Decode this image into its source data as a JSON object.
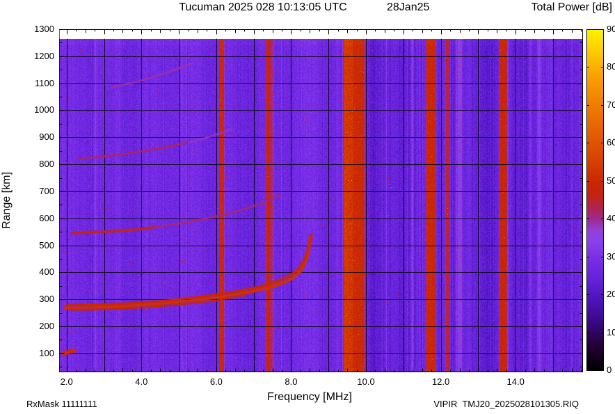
{
  "footer": {
    "rx_mask": "RxMask 11111111",
    "file_name": "VIPIR  TMJ20_2025028101305.RIQ"
  },
  "chart_data": {
    "type": "heatmap",
    "title": "Tucuman 2025 028 10:13:05 UTC",
    "date_label": "28Jan25",
    "xlabel": "Frequency [MHz]",
    "ylabel": "Range [km]",
    "colorbar_label": "Total Power [dB]",
    "xlim": [
      1.8,
      15.8
    ],
    "ylim": [
      30,
      1300
    ],
    "zlim": [
      0,
      90
    ],
    "x_major_ticks": [
      2,
      4,
      6,
      8,
      10,
      12,
      14
    ],
    "x_tick_labels": [
      "2.0",
      "4.0",
      "6.0",
      "8.0",
      "10.0",
      "12.0",
      "14.0"
    ],
    "y_major_ticks": [
      100,
      200,
      300,
      400,
      500,
      600,
      700,
      800,
      900,
      1000,
      1100,
      1200,
      1300
    ],
    "y_tick_labels": [
      "100",
      "200",
      "300",
      "400",
      "500",
      "600",
      "700",
      "800",
      "900",
      "1000",
      "1100",
      "1200",
      "1300"
    ],
    "z_ticks": [
      0,
      10,
      20,
      30,
      40,
      50,
      60,
      70,
      80,
      90
    ],
    "grid": true,
    "legend_position": "colorbar-right",
    "background_db": 27,
    "data_top_km": 1265,
    "colormap_stops": [
      [
        0,
        "#000000"
      ],
      [
        7,
        "#26003a"
      ],
      [
        13,
        "#3a0a86"
      ],
      [
        19,
        "#4f14c0"
      ],
      [
        25,
        "#6a24de"
      ],
      [
        30,
        "#7b2fe8"
      ],
      [
        34,
        "#8a40ee"
      ],
      [
        37,
        "#9340d8"
      ],
      [
        40,
        "#a02a90"
      ],
      [
        43,
        "#b02450"
      ],
      [
        46,
        "#c22414"
      ],
      [
        50,
        "#cc2800"
      ],
      [
        56,
        "#d84400"
      ],
      [
        63,
        "#e66000"
      ],
      [
        70,
        "#f07d00"
      ],
      [
        78,
        "#faa300"
      ],
      [
        85,
        "#ffd000"
      ],
      [
        90,
        "#fff200"
      ]
    ],
    "rfi_bands": [
      {
        "f_start": 2.74,
        "f_end": 2.84,
        "db_boost": 4
      },
      {
        "f_start": 3.38,
        "f_end": 3.44,
        "db_boost": 3
      },
      {
        "f_start": 6.09,
        "f_end": 6.2,
        "db_boost": 22
      },
      {
        "f_start": 7.34,
        "f_end": 7.42,
        "db_boost": 20
      },
      {
        "f_start": 7.44,
        "f_end": 7.5,
        "db_boost": 15
      },
      {
        "f_start": 9.4,
        "f_end": 9.66,
        "db_boost": 26
      },
      {
        "f_start": 9.68,
        "f_end": 9.95,
        "db_boost": 23
      },
      {
        "f_start": 11.22,
        "f_end": 11.26,
        "db_boost": 8
      },
      {
        "f_start": 11.62,
        "f_end": 11.86,
        "db_boost": 22
      },
      {
        "f_start": 12.12,
        "f_end": 12.24,
        "db_boost": 18
      },
      {
        "f_start": 12.43,
        "f_end": 12.55,
        "db_boost": 10
      },
      {
        "f_start": 13.57,
        "f_end": 13.76,
        "db_boost": 22
      },
      {
        "f_start": 14.35,
        "f_end": 14.42,
        "db_boost": 6
      },
      {
        "f_start": 14.6,
        "f_end": 14.68,
        "db_boost": 7
      }
    ],
    "traces": [
      {
        "name": "F-layer-echo-main",
        "db": 52,
        "width": 3.5,
        "points": [
          [
            1.95,
            268
          ],
          [
            2.3,
            268
          ],
          [
            2.8,
            270
          ],
          [
            3.3,
            273
          ],
          [
            3.8,
            277
          ],
          [
            4.3,
            282
          ],
          [
            4.8,
            288
          ],
          [
            5.3,
            295
          ],
          [
            5.8,
            303
          ],
          [
            6.3,
            313
          ],
          [
            6.8,
            325
          ],
          [
            7.2,
            337
          ],
          [
            7.6,
            352
          ],
          [
            7.9,
            368
          ],
          [
            8.1,
            385
          ],
          [
            8.25,
            405
          ],
          [
            8.35,
            430
          ],
          [
            8.43,
            460
          ],
          [
            8.48,
            495
          ],
          [
            8.51,
            530
          ]
        ]
      },
      {
        "name": "F-layer-echo-second",
        "db": 49,
        "width": 2.5,
        "points": [
          [
            2.0,
            278
          ],
          [
            2.5,
            279
          ],
          [
            3.0,
            281
          ],
          [
            3.5,
            284
          ],
          [
            4.0,
            288
          ],
          [
            4.5,
            293
          ],
          [
            5.0,
            300
          ],
          [
            5.5,
            308
          ],
          [
            6.0,
            317
          ],
          [
            6.5,
            328
          ],
          [
            7.0,
            341
          ],
          [
            7.4,
            356
          ],
          [
            7.7,
            371
          ],
          [
            8.0,
            391
          ],
          [
            8.2,
            413
          ],
          [
            8.33,
            441
          ],
          [
            8.42,
            471
          ],
          [
            8.5,
            506
          ],
          [
            8.55,
            540
          ]
        ]
      },
      {
        "name": "F-layer-echo-lower",
        "db": 47,
        "width": 1.5,
        "points": [
          [
            2.1,
            261
          ],
          [
            3.0,
            263
          ],
          [
            4.0,
            269
          ],
          [
            5.0,
            280
          ],
          [
            6.0,
            296
          ],
          [
            6.8,
            316
          ]
        ]
      },
      {
        "name": "second-hop-echo",
        "db": 47,
        "width": 2.5,
        "points": [
          [
            2.15,
            545
          ],
          [
            2.6,
            548
          ],
          [
            3.1,
            551
          ],
          [
            3.6,
            556
          ],
          [
            4.0,
            561
          ],
          [
            4.35,
            567
          ]
        ]
      },
      {
        "name": "second-hop-faint",
        "db": 41,
        "width": 1.8,
        "points": [
          [
            4.4,
            568
          ],
          [
            5.0,
            580
          ],
          [
            5.6,
            595
          ],
          [
            6.2,
            613
          ],
          [
            6.8,
            636
          ],
          [
            7.3,
            660
          ],
          [
            7.7,
            685
          ]
        ]
      },
      {
        "name": "third-hop-echo",
        "db": 42,
        "width": 1.8,
        "points": [
          [
            2.3,
            820
          ],
          [
            2.9,
            828
          ],
          [
            3.5,
            838
          ],
          [
            4.1,
            850
          ],
          [
            4.7,
            864
          ],
          [
            5.2,
            880
          ]
        ]
      },
      {
        "name": "third-hop-faint",
        "db": 38,
        "width": 1.5,
        "points": [
          [
            5.3,
            882
          ],
          [
            5.9,
            905
          ],
          [
            6.4,
            930
          ]
        ]
      },
      {
        "name": "fourth-hop-faint",
        "db": 39,
        "width": 1.6,
        "points": [
          [
            3.2,
            1085
          ],
          [
            3.8,
            1103
          ],
          [
            4.4,
            1126
          ],
          [
            4.9,
            1150
          ],
          [
            5.3,
            1172
          ]
        ]
      },
      {
        "name": "e-region-blob",
        "db": 51,
        "width": 5,
        "points": [
          [
            1.92,
            100
          ],
          [
            2.05,
            105
          ],
          [
            2.2,
            110
          ]
        ]
      }
    ]
  }
}
